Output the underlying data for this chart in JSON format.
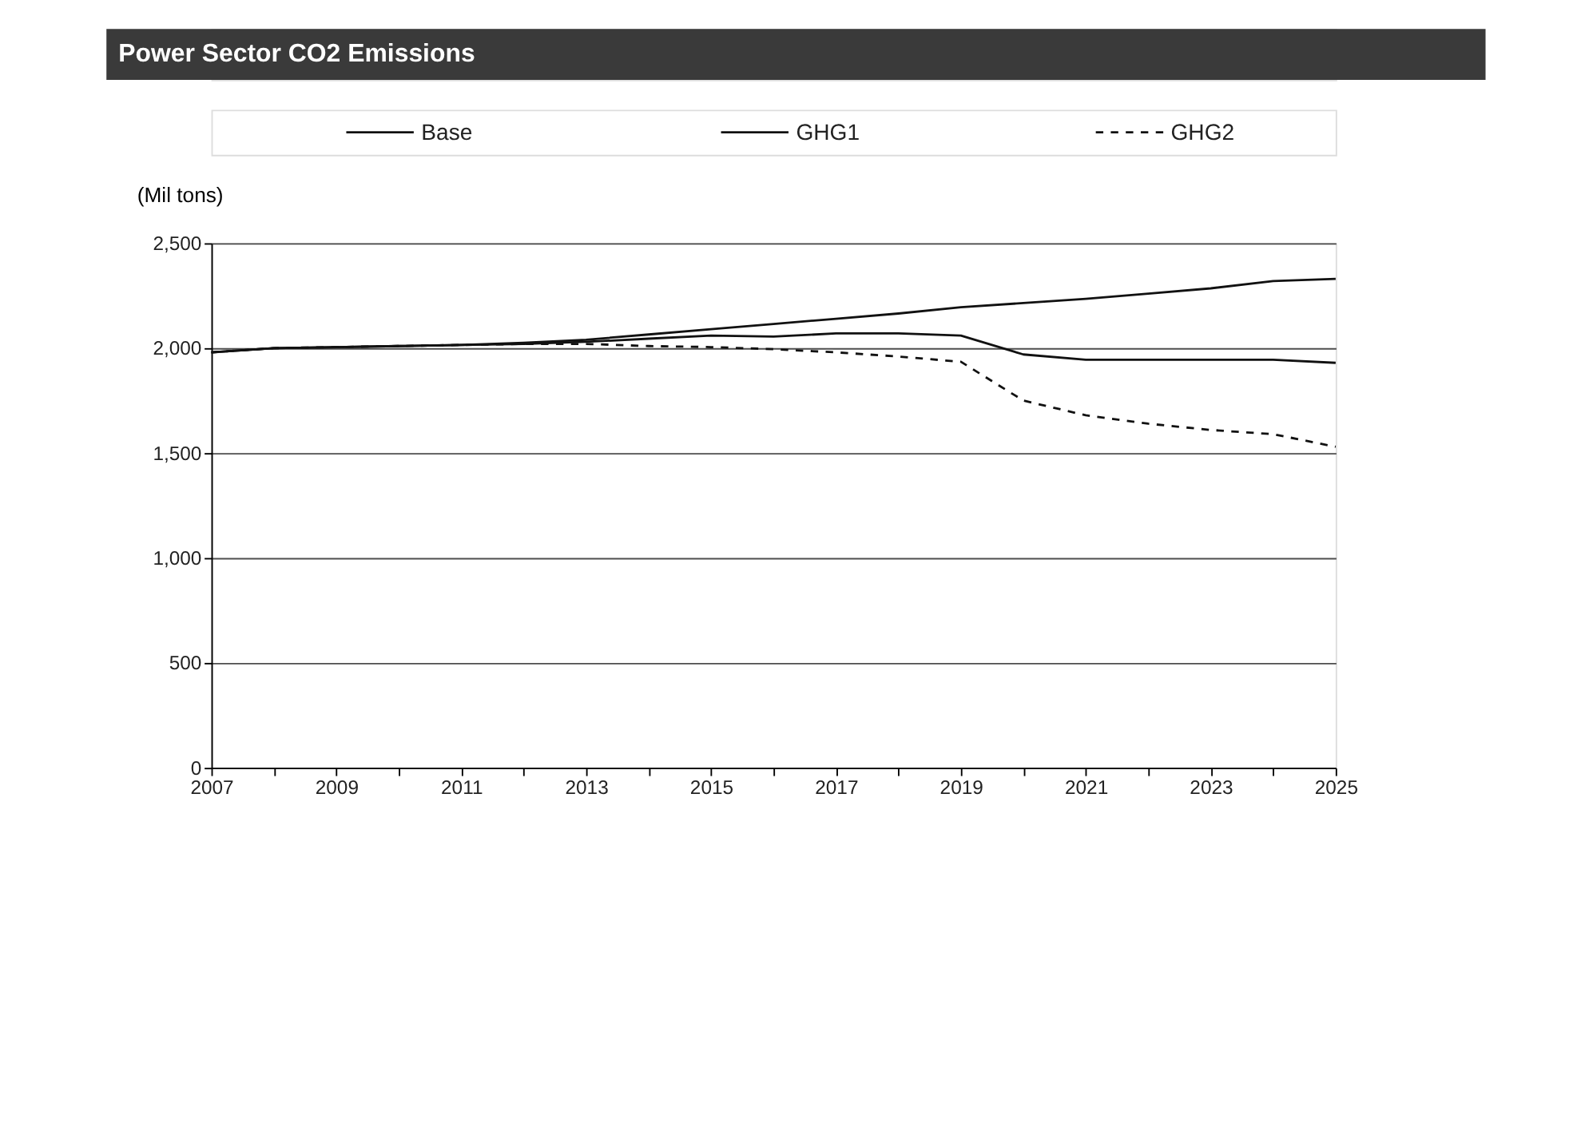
{
  "chart_data": {
    "type": "line",
    "title": "Power Sector CO2 Emissions",
    "ylabel": "(Mil tons)",
    "x": [
      2007,
      2008,
      2009,
      2010,
      2011,
      2012,
      2013,
      2014,
      2015,
      2016,
      2017,
      2018,
      2019,
      2020,
      2021,
      2022,
      2023,
      2024,
      2025
    ],
    "series": [
      {
        "name": "Base",
        "color": "#111111",
        "line_style": "solid",
        "values": [
          1980,
          2000,
          2005,
          2010,
          2015,
          2025,
          2040,
          2065,
          2090,
          2115,
          2140,
          2165,
          2195,
          2215,
          2235,
          2260,
          2285,
          2320,
          2330
        ]
      },
      {
        "name": "GHG1",
        "color": "#111111",
        "line_style": "solid",
        "values": [
          1980,
          2000,
          2005,
          2010,
          2015,
          2020,
          2030,
          2045,
          2060,
          2055,
          2070,
          2070,
          2060,
          1970,
          1945,
          1945,
          1945,
          1945,
          1930
        ]
      },
      {
        "name": "GHG2",
        "color": "#111111",
        "line_style": "dashed",
        "values": [
          1980,
          2000,
          2005,
          2010,
          2015,
          2020,
          2020,
          2010,
          2005,
          1995,
          1980,
          1960,
          1935,
          1750,
          1680,
          1640,
          1610,
          1590,
          1530
        ]
      }
    ],
    "xlim": [
      2007,
      2025
    ],
    "xticks": [
      2007,
      {
        "value": 2008,
        "label": null
      },
      2009,
      {
        "value": 2010,
        "label": null
      },
      2011,
      {
        "value": 2012,
        "label": null
      },
      2013,
      {
        "value": 2014,
        "label": null
      },
      2015,
      {
        "value": 2016,
        "label": null
      },
      2017,
      {
        "value": 2018,
        "label": null
      },
      2019,
      {
        "value": 2020,
        "label": null
      },
      2021,
      {
        "value": 2022,
        "label": null
      },
      2023,
      {
        "value": 2024,
        "label": null
      },
      2025
    ],
    "ylim": [
      0,
      2500
    ],
    "yticks": [
      {
        "value": 0,
        "label": "0"
      },
      {
        "value": 500,
        "label": "500"
      },
      {
        "value": 1000,
        "label": "1,000"
      },
      {
        "value": 1500,
        "label": "1,500"
      },
      {
        "value": 2000,
        "label": "2,000"
      },
      {
        "value": 2500,
        "label": "2,500"
      }
    ],
    "grid": "y",
    "legend": "top"
  }
}
